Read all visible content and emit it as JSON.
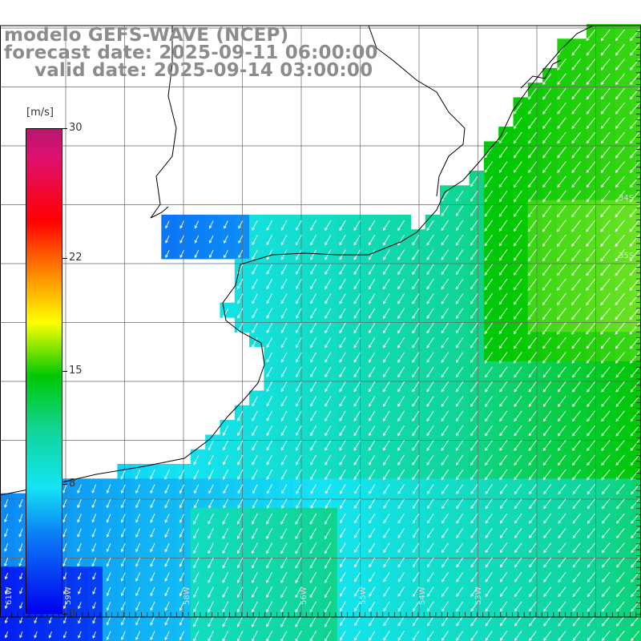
{
  "title": {
    "line1": "modelo GEFS-WAVE (NCEP)",
    "line2": "forecast date: 2025-09-11 06:00:00",
    "line3": "valid date: 2025-09-14 03:00:00"
  },
  "colorbar": {
    "unit": "[m/s]",
    "ticks": [
      {
        "label": "30",
        "value": 30
      },
      {
        "label": "22",
        "value": 22
      },
      {
        "label": "15",
        "value": 15
      },
      {
        "label": "8",
        "value": 8
      },
      {
        "label": "0",
        "value": 0
      }
    ],
    "range": [
      0,
      30
    ],
    "colors": [
      "#0000f0",
      "#0b7cf6",
      "#14e4f4",
      "#10d596",
      "#00c800",
      "#ffff00",
      "#ff6600",
      "#ff0000",
      "#e01070",
      "#b8166e"
    ]
  },
  "map": {
    "field": "wind speed",
    "land_color": "#ffffff",
    "grid": true,
    "lat_labels": [
      "34S",
      "35S"
    ],
    "lon_labels": [
      "61W",
      "59W",
      "58W",
      "56W",
      "55W",
      "54W",
      "53W"
    ],
    "wind_direction": "from north / north-east, arrows pointing south / south-west"
  }
}
